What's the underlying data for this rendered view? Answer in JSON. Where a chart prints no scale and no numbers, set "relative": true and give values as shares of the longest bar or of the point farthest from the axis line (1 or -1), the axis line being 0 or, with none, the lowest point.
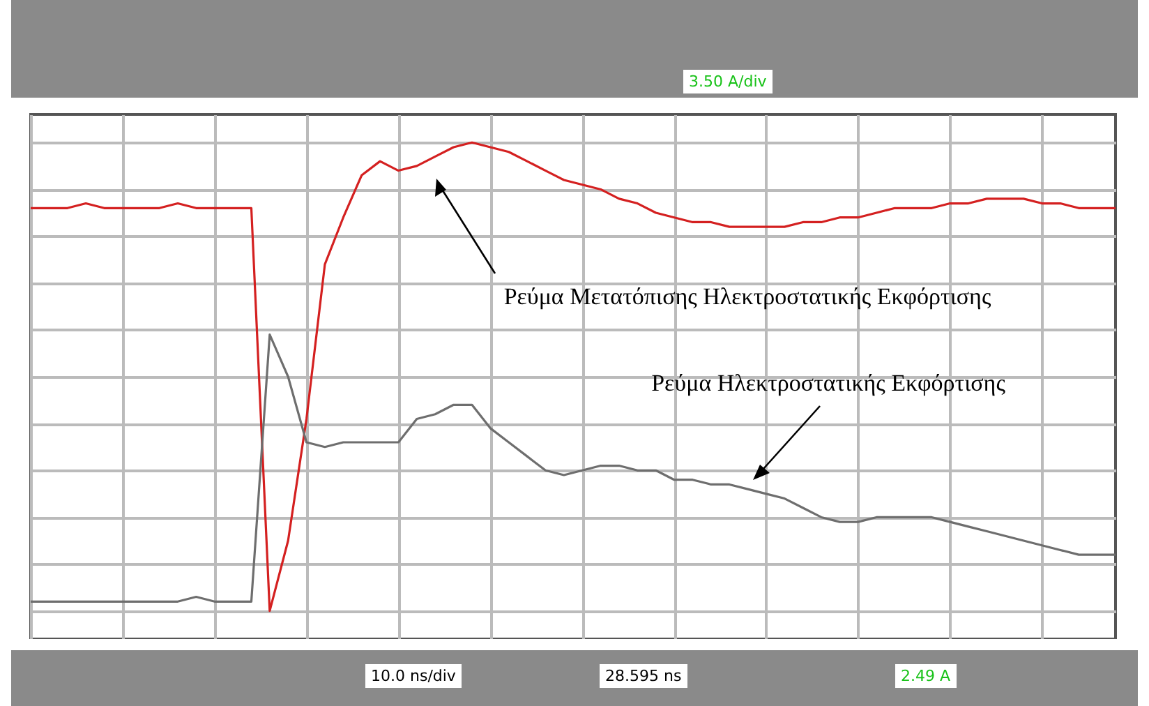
{
  "chart_data": {
    "type": "line",
    "relative": true,
    "grid": true,
    "categories": [
      null,
      null,
      null,
      null,
      null,
      null,
      null,
      null,
      null,
      null,
      null,
      null,
      null,
      null,
      null,
      null,
      null,
      null,
      null,
      null,
      null,
      null,
      null,
      null,
      null,
      null,
      null,
      null,
      null,
      null,
      null,
      null,
      null,
      null,
      null,
      null,
      null,
      null,
      null,
      null,
      null,
      null,
      null,
      null,
      null,
      null,
      null,
      null,
      null,
      null,
      null,
      null,
      null,
      null,
      null,
      null,
      null,
      null,
      null,
      null
    ],
    "series": [
      {
        "color": "#d42020",
        "values": [
          0.86,
          0.86,
          0.86,
          0.87,
          0.86,
          0.86,
          0.86,
          0.86,
          0.87,
          0.86,
          0.86,
          0.86,
          0.86,
          0,
          0.15,
          0.41,
          0.74,
          0.84,
          0.93,
          0.96,
          0.94,
          0.95,
          0.97,
          0.99,
          1,
          0.99,
          0.98,
          0.96,
          0.94,
          0.92,
          0.91,
          0.9,
          0.88,
          0.87,
          0.85,
          0.84,
          0.83,
          0.83,
          0.82,
          0.82,
          0.82,
          0.82,
          0.83,
          0.83,
          0.84,
          0.84,
          0.85,
          0.86,
          0.86,
          0.86,
          0.87,
          0.87,
          0.88,
          0.88,
          0.88,
          0.87,
          0.87,
          0.86,
          0.86,
          0.86
        ]
      },
      {
        "color": "#6e6e6e",
        "values": [
          0.02,
          0.02,
          0.02,
          0.02,
          0.02,
          0.02,
          0.02,
          0.02,
          0.02,
          0.03,
          0.02,
          0.02,
          0.02,
          0.59,
          0.5,
          0.36,
          0.35,
          0.36,
          0.36,
          0.36,
          0.36,
          0.41,
          0.42,
          0.44,
          0.44,
          0.39,
          0.36,
          0.33,
          0.3,
          0.29,
          0.3,
          0.31,
          0.31,
          0.3,
          0.3,
          0.28,
          0.28,
          0.27,
          0.27,
          0.26,
          0.25,
          0.24,
          0.22,
          0.2,
          0.19,
          0.19,
          0.2,
          0.2,
          0.2,
          0.2,
          0.19,
          0.18,
          0.17,
          0.16,
          0.15,
          0.14,
          0.13,
          0.12,
          0.12,
          0.12
        ]
      }
    ],
    "annotations": [
      "Ρεύμα Μετατόπισης Ηλεκτροστατικής Εκφόρτισης",
      "Ρεύμα Ηλεκτροστατικής Εκφόρτισης",
      "3.50 A/div",
      "10.0 ns/div",
      "28.595 ns",
      "2.49 A"
    ]
  }
}
